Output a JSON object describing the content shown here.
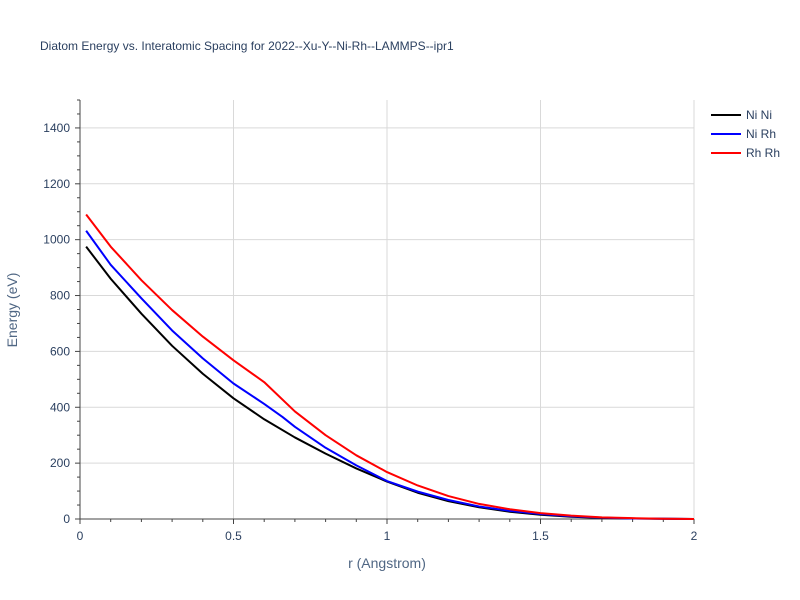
{
  "chart_data": {
    "type": "line",
    "title": "Diatom Energy vs. Interatomic Spacing for 2022--Xu-Y--Ni-Rh--LAMMPS--ipr1",
    "xlabel": "r (Angstrom)",
    "ylabel": "Energy (eV)",
    "xlim": [
      0,
      2
    ],
    "ylim": [
      0,
      1500
    ],
    "xticks": [
      0,
      0.5,
      1,
      1.5,
      2
    ],
    "xtick_labels": [
      "0",
      "0.5",
      "1",
      "1.5",
      "2"
    ],
    "yticks": [
      0,
      200,
      400,
      600,
      800,
      1000,
      1200,
      1400
    ],
    "ytick_labels": [
      "0",
      "200",
      "400",
      "600",
      "800",
      "1000",
      "1200",
      "1400"
    ],
    "grid": true,
    "legend_position": "top-right",
    "series": [
      {
        "name": "Ni Ni",
        "color": "#000000",
        "x": [
          0.02,
          0.1,
          0.2,
          0.3,
          0.4,
          0.5,
          0.6,
          0.7,
          0.8,
          0.9,
          1.0,
          1.1,
          1.2,
          1.3,
          1.4,
          1.5,
          1.6,
          1.7,
          1.8,
          1.9,
          2.0
        ],
        "y": [
          975,
          860,
          735,
          620,
          520,
          432,
          357,
          292,
          234,
          181,
          134,
          94,
          64,
          42,
          26,
          15,
          8,
          4,
          2,
          1,
          0
        ]
      },
      {
        "name": "Ni Rh",
        "color": "#0000ff",
        "x": [
          0.02,
          0.1,
          0.2,
          0.3,
          0.4,
          0.5,
          0.6,
          0.66,
          0.7,
          0.8,
          0.9,
          1.0,
          1.1,
          1.2,
          1.3,
          1.4,
          1.5,
          1.6,
          1.7,
          1.8,
          1.9,
          2.0
        ],
        "y": [
          1032,
          910,
          790,
          675,
          575,
          485,
          412,
          365,
          330,
          255,
          192,
          136,
          98,
          68,
          45,
          29,
          18,
          10,
          5,
          2,
          1,
          0
        ]
      },
      {
        "name": "Rh Rh",
        "color": "#ff0000",
        "x": [
          0.02,
          0.1,
          0.2,
          0.3,
          0.4,
          0.5,
          0.6,
          0.7,
          0.8,
          0.9,
          1.0,
          1.1,
          1.2,
          1.3,
          1.4,
          1.5,
          1.6,
          1.7,
          1.8,
          1.9,
          2.0
        ],
        "y": [
          1090,
          975,
          855,
          748,
          653,
          568,
          490,
          385,
          300,
          228,
          168,
          120,
          82,
          54,
          35,
          21,
          12,
          6,
          3,
          1,
          0
        ]
      }
    ]
  }
}
